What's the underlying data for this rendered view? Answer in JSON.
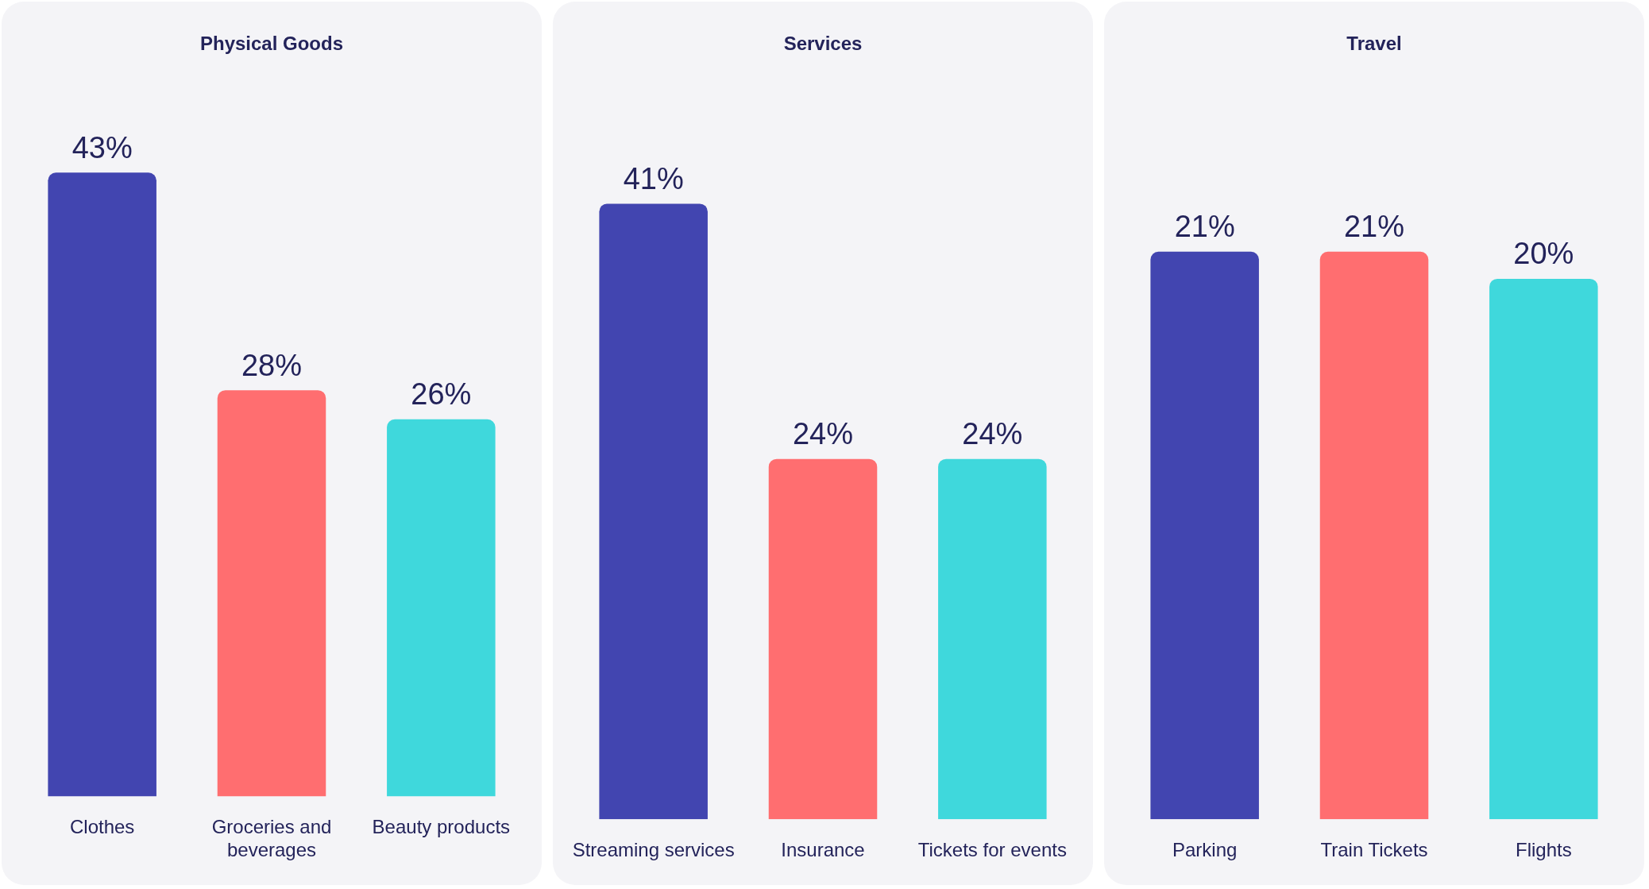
{
  "chart_data": [
    {
      "type": "bar",
      "title": "Physical Goods",
      "categories": [
        "Clothes",
        "Groceries and beverages",
        "Beauty products"
      ],
      "values": [
        43,
        28,
        26
      ],
      "colors": [
        "#4245b0",
        "#ff6e70",
        "#3fd8dc"
      ],
      "value_labels": [
        "43%",
        "28%",
        "26%"
      ],
      "grid": false,
      "legend": false
    },
    {
      "type": "bar",
      "title": "Services",
      "categories": [
        "Streaming services",
        "Insurance",
        "Tickets for events"
      ],
      "values": [
        41,
        24,
        24
      ],
      "colors": [
        "#4245b0",
        "#ff6e70",
        "#3fd8dc"
      ],
      "value_labels": [
        "41%",
        "24%",
        "24%"
      ],
      "grid": false,
      "legend": false
    },
    {
      "type": "bar",
      "title": "Travel",
      "categories": [
        "Parking",
        "Train Tickets",
        "Flights"
      ],
      "values": [
        21,
        21,
        20
      ],
      "colors": [
        "#4245b0",
        "#ff6e70",
        "#3fd8dc"
      ],
      "value_labels": [
        "21%",
        "21%",
        "20%"
      ],
      "grid": false,
      "legend": false
    }
  ]
}
